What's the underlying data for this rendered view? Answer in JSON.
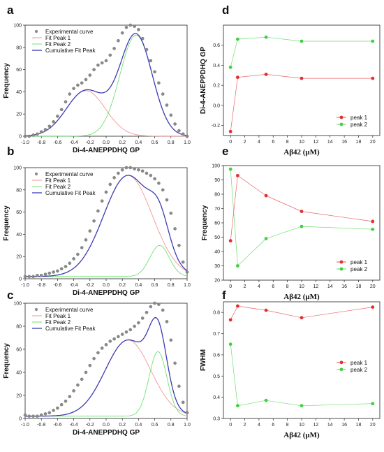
{
  "chart_data": [
    {
      "panel": "a",
      "type": "line",
      "xlabel": "Di-4-ANEPPDHQ GP",
      "ylabel": "Frequency",
      "xlim": [
        -1.0,
        1.0
      ],
      "ylim": [
        0,
        100
      ],
      "xticks": [
        "-1.0",
        "-0.8",
        "-0.6",
        "-0.4",
        "-0.2",
        "0.0",
        "0.2",
        "0.4",
        "0.6",
        "0.8",
        "1.0"
      ],
      "yticks": [
        "0",
        "20",
        "40",
        "60",
        "80",
        "100"
      ],
      "legend": [
        "Experimental curve",
        "Fit Peak 1",
        "Fit Peak 2",
        "Cumulative Fit Peak"
      ],
      "legend_position": "top-left",
      "peaks": [
        {
          "name": "Fit Peak 1",
          "center": -0.25,
          "height": 41,
          "sigma": 0.24,
          "color": "#f08a8a"
        },
        {
          "name": "Fit Peak 2",
          "center": 0.37,
          "height": 91,
          "sigma": 0.2,
          "color": "#5fe05f"
        }
      ],
      "cumulative_color": "#3b3bb5",
      "experimental": {
        "x": [
          -1.0,
          -0.95,
          -0.9,
          -0.85,
          -0.8,
          -0.75,
          -0.7,
          -0.65,
          -0.6,
          -0.55,
          -0.5,
          -0.45,
          -0.4,
          -0.35,
          -0.3,
          -0.25,
          -0.2,
          -0.15,
          -0.1,
          -0.05,
          0.0,
          0.05,
          0.1,
          0.15,
          0.2,
          0.25,
          0.3,
          0.35,
          0.4,
          0.45,
          0.5,
          0.55,
          0.6,
          0.65,
          0.7,
          0.75,
          0.8,
          0.85,
          0.9,
          0.95,
          1.0
        ],
        "y": [
          0,
          0,
          1,
          2,
          4,
          6,
          9,
          13,
          18,
          24,
          31,
          38,
          43,
          46,
          48,
          51,
          55,
          60,
          64,
          66,
          68,
          73,
          79,
          86,
          93,
          98,
          100,
          99,
          96,
          88,
          78,
          68,
          58,
          48,
          38,
          28,
          19,
          11,
          5,
          2,
          0
        ]
      }
    },
    {
      "panel": "b",
      "type": "line",
      "xlabel": "Di-4-ANEPPDHQ GP",
      "ylabel": "Frequency",
      "xlim": [
        -1.0,
        1.0
      ],
      "ylim": [
        0,
        100
      ],
      "xticks": [
        "-1.0",
        "-0.8",
        "-0.6",
        "-0.4",
        "-0.2",
        "0.0",
        "0.2",
        "0.4",
        "0.6",
        "0.8",
        "1.0"
      ],
      "yticks": [
        "0",
        "20",
        "40",
        "60",
        "80",
        "100"
      ],
      "legend": [
        "Experimental curve",
        "Fit Peak 1",
        "Fit Peak 2",
        "Cumulative Fit Peak"
      ],
      "legend_position": "top-left",
      "peaks": [
        {
          "name": "Fit Peak 1",
          "center": 0.27,
          "height": 93,
          "sigma": 0.3,
          "color": "#f08a8a"
        },
        {
          "name": "Fit Peak 2",
          "center": 0.66,
          "height": 30,
          "sigma": 0.12,
          "color": "#5fe05f"
        }
      ],
      "baseline": 2,
      "cumulative_color": "#3b3bb5",
      "experimental": {
        "x": [
          -1.0,
          -0.95,
          -0.9,
          -0.85,
          -0.8,
          -0.75,
          -0.7,
          -0.65,
          -0.6,
          -0.55,
          -0.5,
          -0.45,
          -0.4,
          -0.35,
          -0.3,
          -0.25,
          -0.2,
          -0.15,
          -0.1,
          -0.05,
          0.0,
          0.05,
          0.1,
          0.15,
          0.2,
          0.25,
          0.3,
          0.35,
          0.4,
          0.45,
          0.5,
          0.55,
          0.6,
          0.65,
          0.7,
          0.75,
          0.8,
          0.85,
          0.9,
          0.95,
          1.0
        ],
        "y": [
          2,
          2,
          2,
          3,
          3,
          4,
          5,
          6,
          7,
          9,
          11,
          14,
          18,
          22,
          28,
          35,
          43,
          52,
          61,
          70,
          78,
          85,
          91,
          95,
          98,
          100,
          100,
          99,
          98,
          97,
          95,
          93,
          90,
          86,
          80,
          71,
          59,
          45,
          30,
          15,
          6
        ]
      }
    },
    {
      "panel": "c",
      "type": "line",
      "xlabel": "Di-4-ANEPPDHQ GP",
      "ylabel": "Frequency",
      "xlim": [
        -1.0,
        1.0
      ],
      "ylim": [
        0,
        100
      ],
      "xticks": [
        "-1.0",
        "-0.8",
        "-0.6",
        "-0.4",
        "-0.2",
        "0.0",
        "0.2",
        "0.4",
        "0.6",
        "0.8",
        "1.0"
      ],
      "yticks": [
        "0",
        "20",
        "40",
        "60",
        "80",
        "100"
      ],
      "legend": [
        "Experimental curve",
        "Fit Peak 1",
        "Fit Peak 2",
        "Cumulative Fit Peak"
      ],
      "legend_position": "top-left",
      "peaks": [
        {
          "name": "Fit Peak 1",
          "center": 0.27,
          "height": 68,
          "sigma": 0.28,
          "color": "#f08a8a"
        },
        {
          "name": "Fit Peak 2",
          "center": 0.64,
          "height": 58,
          "sigma": 0.11,
          "color": "#5fe05f"
        }
      ],
      "baseline": 2,
      "cumulative_color": "#3b3bb5",
      "experimental": {
        "x": [
          -1.0,
          -0.95,
          -0.9,
          -0.85,
          -0.8,
          -0.75,
          -0.7,
          -0.65,
          -0.6,
          -0.55,
          -0.5,
          -0.45,
          -0.4,
          -0.35,
          -0.3,
          -0.25,
          -0.2,
          -0.15,
          -0.1,
          -0.05,
          0.0,
          0.05,
          0.1,
          0.15,
          0.2,
          0.25,
          0.3,
          0.35,
          0.4,
          0.45,
          0.5,
          0.55,
          0.6,
          0.65,
          0.7,
          0.75,
          0.8,
          0.85,
          0.9,
          0.95,
          1.0
        ],
        "y": [
          3,
          2,
          2,
          2,
          3,
          4,
          5,
          7,
          9,
          12,
          15,
          19,
          24,
          29,
          34,
          40,
          46,
          52,
          57,
          61,
          64,
          67,
          69,
          71,
          73,
          75,
          77,
          80,
          83,
          87,
          92,
          97,
          100,
          99,
          94,
          84,
          68,
          48,
          28,
          14,
          5
        ]
      }
    },
    {
      "panel": "d",
      "type": "line",
      "xlabel": "Aβ42 (μM)",
      "ylabel": "Di-4-ANEPPDHQ GP",
      "xlim": [
        -1,
        21
      ],
      "ylim": [
        -0.3,
        0.8
      ],
      "xticks": [
        "0",
        "2",
        "4",
        "6",
        "8",
        "10",
        "12",
        "14",
        "16",
        "18",
        "20"
      ],
      "yticks": [
        "-0.2",
        "0.0",
        "0.2",
        "0.4",
        "0.6"
      ],
      "legend_position": "bottom-right",
      "x": [
        0,
        1,
        5,
        10,
        20
      ],
      "series": [
        {
          "name": "peak 1",
          "color": "#e03030",
          "values": [
            -0.26,
            0.28,
            0.31,
            0.27,
            0.27
          ]
        },
        {
          "name": "peak 2",
          "color": "#40d040",
          "values": [
            0.38,
            0.66,
            0.68,
            0.64,
            0.64
          ]
        }
      ]
    },
    {
      "panel": "e",
      "type": "line",
      "xlabel": "Aβ42 (μM)",
      "ylabel": "Frequency",
      "xlim": [
        -1,
        21
      ],
      "ylim": [
        20,
        100
      ],
      "xticks": [
        "0",
        "2",
        "4",
        "6",
        "8",
        "10",
        "12",
        "14",
        "16",
        "18",
        "20"
      ],
      "yticks": [
        "20",
        "30",
        "40",
        "50",
        "60",
        "70",
        "80",
        "90",
        "100"
      ],
      "legend_position": "bottom-right",
      "x": [
        0,
        1,
        5,
        10,
        20
      ],
      "series": [
        {
          "name": "peak 1",
          "color": "#e03030",
          "values": [
            47.5,
            93,
            79,
            68,
            61
          ]
        },
        {
          "name": "peak 2",
          "color": "#40d040",
          "values": [
            97.5,
            30,
            49,
            57.5,
            55.5
          ]
        }
      ]
    },
    {
      "panel": "f",
      "type": "line",
      "xlabel": "Aβ42 (μM)",
      "ylabel": "FWHM",
      "xlim": [
        -1,
        21
      ],
      "ylim": [
        0.3,
        0.85
      ],
      "xticks": [
        "0",
        "2",
        "4",
        "6",
        "8",
        "10",
        "12",
        "14",
        "16",
        "18",
        "20"
      ],
      "yticks": [
        "0.3",
        "0.4",
        "0.5",
        "0.6",
        "0.7",
        "0.8"
      ],
      "legend_position": "center-right",
      "x": [
        0,
        1,
        5,
        10,
        20
      ],
      "series": [
        {
          "name": "peak 1",
          "color": "#e03030",
          "values": [
            0.765,
            0.83,
            0.81,
            0.775,
            0.825
          ]
        },
        {
          "name": "peak 2",
          "color": "#40d040",
          "values": [
            0.65,
            0.36,
            0.385,
            0.36,
            0.37
          ]
        }
      ]
    }
  ]
}
